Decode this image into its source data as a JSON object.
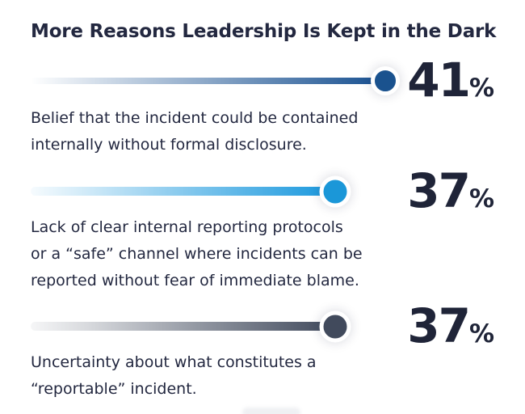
{
  "title": "More Reasons Leadership Is Kept in the Dark",
  "colors": {
    "background": "#ffffff",
    "title_text": "#232840",
    "value_text": "#1f2438",
    "caption_text": "#232840",
    "bar1": "#1d5493",
    "dot1": "#1a528e",
    "bar2": "#1e9ade",
    "dot2": "#1b97d8",
    "bar3": "#454e60",
    "dot3": "#414a5c"
  },
  "items": [
    {
      "value": 41,
      "unit": "%",
      "label": "Belief that the incident could be contained internally without formal disclosure.",
      "lines": [
        "Belief that the incident could be contained",
        "internally without formal disclosure."
      ],
      "bar_color": "#1d5493",
      "dot_color": "#1a528e"
    },
    {
      "value": 37,
      "unit": "%",
      "label": "Lack of clear internal reporting protocols or a “safe” channel where incidents can be reported without fear of immediate blame.",
      "lines": [
        "Lack of clear internal reporting protocols",
        "or a “safe” channel where incidents can be",
        "reported without fear of immediate blame."
      ],
      "bar_color": "#1e9ade",
      "dot_color": "#1b97d8"
    },
    {
      "value": 37,
      "unit": "%",
      "label": "Uncertainty about what constitutes a “reportable” incident.",
      "lines": [
        "Uncertainty about what constitutes a",
        "“reportable” incident."
      ],
      "bar_color": "#454e60",
      "dot_color": "#414a5c"
    }
  ],
  "chart_data": {
    "type": "bar",
    "orientation": "horizontal",
    "title": "More Reasons Leadership Is Kept in the Dark",
    "categories": [
      "Belief that the incident could be contained internally without formal disclosure.",
      "Lack of clear internal reporting protocols or a “safe” channel where incidents can be reported without fear of immediate blame.",
      "Uncertainty about what constitutes a “reportable” incident."
    ],
    "values": [
      41,
      37,
      37
    ],
    "value_labels": [
      "41%",
      "37%",
      "37%"
    ],
    "unit": "%",
    "xlim": [
      0,
      100
    ],
    "colors": [
      "#1a528e",
      "#1b97d8",
      "#414a5c"
    ],
    "legend": false,
    "grid": false
  }
}
